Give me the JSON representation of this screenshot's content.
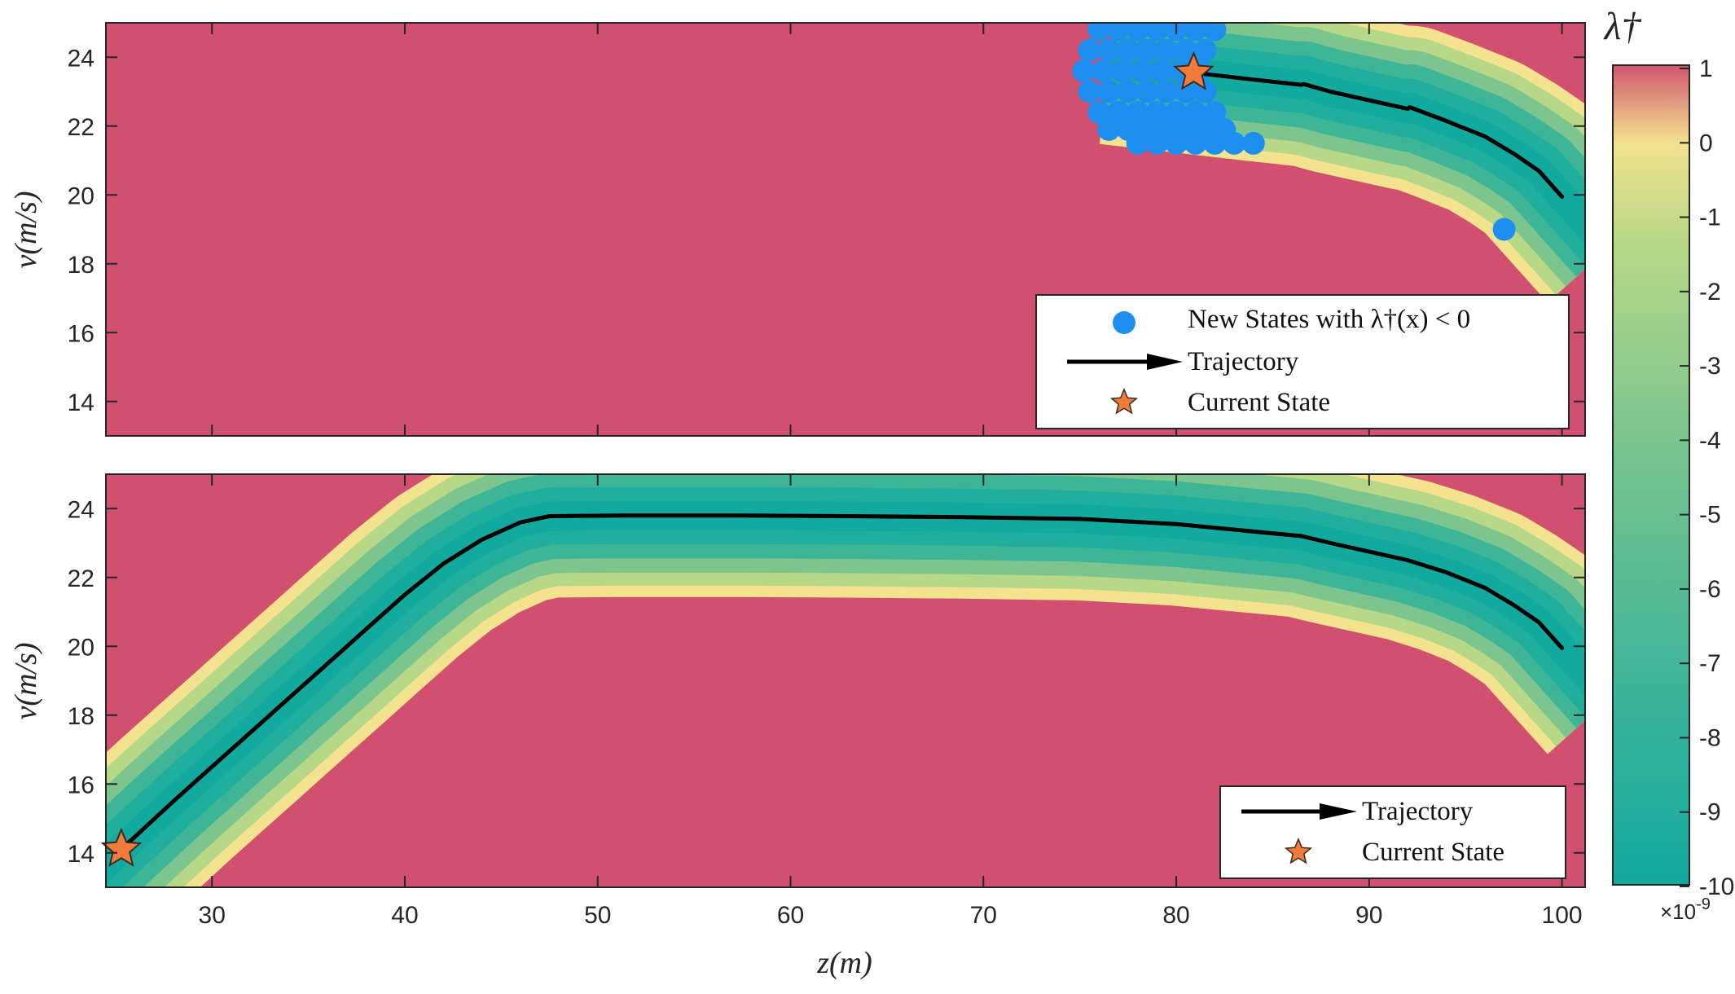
{
  "chart_data": [
    {
      "type": "heatmap",
      "panel": "top",
      "xlabel": "",
      "ylabel": "v(m/s)",
      "xlim": [
        24.5,
        101.2
      ],
      "ylim": [
        13,
        25
      ],
      "yticks": [
        14,
        16,
        18,
        20,
        22,
        24
      ],
      "heatmap_description_values": {
        "background_value": 1,
        "band": "green band (values about -10 to 0) surrounding the trajectory, upper right only"
      },
      "trajectory": {
        "name": "Trajectory",
        "x": [
          80.9,
          82,
          84,
          86.5,
          86.6,
          88,
          90,
          92,
          92.1,
          94,
          96,
          97.5,
          98.8,
          100
        ],
        "y": [
          23.55,
          23.48,
          23.35,
          23.2,
          23.22,
          23.0,
          22.75,
          22.5,
          22.55,
          22.15,
          21.7,
          21.2,
          20.7,
          19.95
        ]
      },
      "current_state": {
        "name": "Current State",
        "x": 80.9,
        "y": 23.55
      },
      "new_states": {
        "name": "New States with λ†(x) < 0",
        "points": [
          [
            76,
            24.8
          ],
          [
            77,
            24.8
          ],
          [
            78,
            24.8
          ],
          [
            79,
            24.8
          ],
          [
            80,
            24.8
          ],
          [
            81,
            24.8
          ],
          [
            82,
            24.8
          ],
          [
            75.5,
            24.2
          ],
          [
            76.5,
            24.2
          ],
          [
            77.5,
            24.2
          ],
          [
            78.5,
            24.2
          ],
          [
            79.5,
            24.2
          ],
          [
            80.5,
            24.2
          ],
          [
            81.5,
            24.2
          ],
          [
            75.2,
            23.6
          ],
          [
            76.2,
            23.6
          ],
          [
            77.2,
            23.6
          ],
          [
            78.2,
            23.6
          ],
          [
            79.2,
            23.6
          ],
          [
            80.2,
            23.6
          ],
          [
            81.2,
            23.6
          ],
          [
            75.5,
            23.0
          ],
          [
            76.5,
            23.0
          ],
          [
            77.5,
            23.0
          ],
          [
            78.5,
            23.0
          ],
          [
            79.5,
            23.0
          ],
          [
            80.5,
            23.0
          ],
          [
            81.5,
            23.0
          ],
          [
            76,
            22.4
          ],
          [
            77,
            22.4
          ],
          [
            78,
            22.4
          ],
          [
            79,
            22.4
          ],
          [
            80,
            22.4
          ],
          [
            81,
            22.4
          ],
          [
            82,
            22.4
          ],
          [
            76.5,
            21.9
          ],
          [
            77.5,
            21.9
          ],
          [
            78.5,
            21.9
          ],
          [
            79.5,
            21.9
          ],
          [
            80.5,
            21.9
          ],
          [
            81.5,
            21.9
          ],
          [
            82.5,
            21.9
          ],
          [
            78,
            21.5
          ],
          [
            79,
            21.5
          ],
          [
            80,
            21.5
          ],
          [
            81,
            21.5
          ],
          [
            82,
            21.5
          ],
          [
            83,
            21.5
          ],
          [
            84,
            21.5
          ],
          [
            97,
            19
          ]
        ]
      }
    },
    {
      "type": "heatmap",
      "panel": "bottom",
      "xlabel": "z(m)",
      "ylabel": "v(m/s)",
      "xlim": [
        24.5,
        101.2
      ],
      "ylim": [
        13,
        25
      ],
      "xticks": [
        30,
        40,
        50,
        60,
        70,
        80,
        90,
        100
      ],
      "yticks": [
        14,
        16,
        18,
        20,
        22,
        24
      ],
      "trajectory": {
        "name": "Trajectory",
        "x": [
          25.3,
          28,
          30,
          32,
          34,
          36,
          38,
          40,
          42,
          44,
          46,
          47.5,
          51.5,
          57.5,
          63,
          69,
          75,
          80,
          86.5,
          88,
          90,
          92,
          94,
          96,
          97.5,
          98.8,
          100
        ],
        "y": [
          14.1,
          15.5,
          16.5,
          17.5,
          18.5,
          19.5,
          20.5,
          21.5,
          22.4,
          23.1,
          23.6,
          23.78,
          23.8,
          23.8,
          23.78,
          23.75,
          23.7,
          23.55,
          23.2,
          23.0,
          22.75,
          22.5,
          22.15,
          21.7,
          21.2,
          20.7,
          19.95
        ]
      },
      "current_state": {
        "name": "Current State",
        "x": 25.3,
        "y": 14.1
      }
    }
  ],
  "colorbar": {
    "title": "λ†",
    "ticks": [
      1,
      0,
      -1,
      -2,
      -3,
      -4,
      -5,
      -6,
      -7,
      -8,
      -9,
      -10
    ],
    "multiplier": "×10",
    "multiplier_exponent": "-9",
    "colors": [
      "#12a99f",
      "#3fb598",
      "#7cc58e",
      "#b6d887",
      "#f3e38e",
      "#d0566f"
    ]
  },
  "legend_top": {
    "items": [
      "New States with λ†(x) < 0",
      "Trajectory",
      "Current State"
    ]
  },
  "legend_bottom": {
    "items": [
      "Trajectory",
      "Current State"
    ]
  },
  "colors": {
    "background": "#d2506f",
    "band_center": "#12a99f",
    "band_edge": "#f3e38e",
    "new_states": "#1e8ff0",
    "star": "#f07c3c",
    "trajectory": "#000000"
  }
}
